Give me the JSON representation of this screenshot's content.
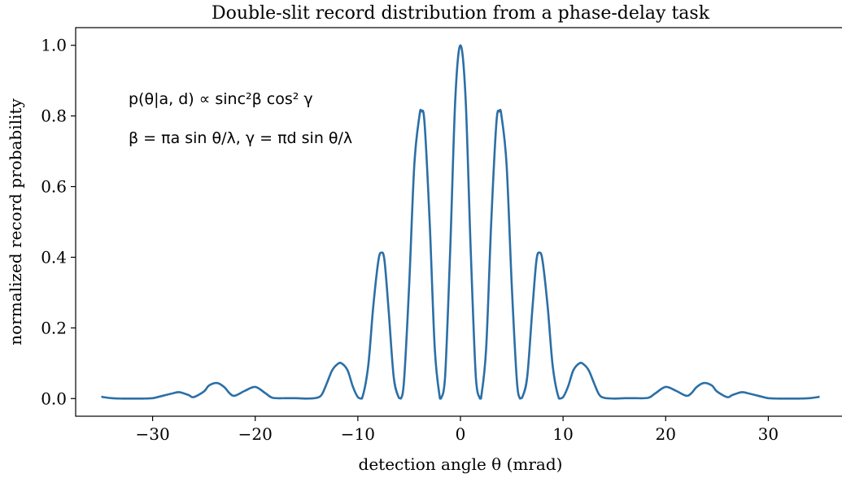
{
  "chart_data": {
    "type": "line",
    "title": "Double-slit record distribution from a phase-delay task",
    "xlabel": "detection angle θ (mrad)",
    "ylabel": "normalized record probability",
    "xlim": [
      -37.5,
      37.5
    ],
    "ylim": [
      -0.05,
      1.05
    ],
    "xticks": [
      -30,
      -20,
      -10,
      0,
      10,
      20,
      30
    ],
    "xtick_labels": [
      "−30",
      "−20",
      "−10",
      "0",
      "10",
      "20",
      "30"
    ],
    "yticks": [
      0.0,
      0.2,
      0.4,
      0.6,
      0.8,
      1.0
    ],
    "ytick_labels": [
      "0.0",
      "0.2",
      "0.4",
      "0.6",
      "0.8",
      "1.0"
    ],
    "grid": false,
    "series": [
      {
        "color": "#2b6fa6",
        "x": [
          -35,
          -34,
          -33,
          -32,
          -31,
          -30,
          -29,
          -28,
          -27.4,
          -26.5,
          -26,
          -25,
          -24.5,
          -23.7,
          -23,
          -22.5,
          -22,
          -21,
          -20,
          -19,
          -18.3,
          -17,
          -16,
          -15,
          -14,
          -13.5,
          -13,
          -12.5,
          -12,
          -11.6,
          -11,
          -10.5,
          -10,
          -9.6,
          -9,
          -8.5,
          -8,
          -7.7,
          -7.4,
          -7,
          -6.5,
          -6,
          -5.8,
          -5.5,
          -5,
          -4.5,
          -4,
          -3.8,
          -3.5,
          -3,
          -2.5,
          -2,
          -1.9,
          -1.5,
          -1,
          -0.5,
          0,
          0.5,
          1,
          1.5,
          1.9,
          2,
          2.5,
          3,
          3.5,
          3.8,
          4,
          4.5,
          5,
          5.5,
          5.8,
          6,
          6.5,
          7,
          7.4,
          7.7,
          8,
          8.5,
          9,
          9.6,
          10,
          10.5,
          11,
          11.6,
          12,
          12.5,
          13,
          13.5,
          14,
          15,
          16,
          17,
          18.3,
          19,
          20,
          21,
          22,
          22.5,
          23,
          23.7,
          24.5,
          25,
          26,
          26.5,
          27.4,
          28,
          29,
          30,
          31,
          32,
          33,
          34,
          35
        ],
        "y": [
          0.005,
          0.001,
          0.0,
          0.0,
          0.0,
          0.001,
          0.008,
          0.015,
          0.018,
          0.01,
          0.004,
          0.02,
          0.037,
          0.044,
          0.032,
          0.015,
          0.008,
          0.022,
          0.033,
          0.015,
          0.002,
          0.001,
          0.001,
          0.0,
          0.002,
          0.012,
          0.045,
          0.08,
          0.097,
          0.1,
          0.08,
          0.035,
          0.004,
          0.0,
          0.09,
          0.26,
          0.39,
          0.413,
          0.39,
          0.25,
          0.06,
          0.002,
          0.0,
          0.05,
          0.32,
          0.66,
          0.8,
          0.813,
          0.78,
          0.5,
          0.14,
          0.0,
          0.0,
          0.06,
          0.42,
          0.85,
          1.0,
          0.85,
          0.42,
          0.06,
          0.0,
          0.0,
          0.14,
          0.5,
          0.78,
          0.813,
          0.8,
          0.66,
          0.32,
          0.05,
          0.0,
          0.002,
          0.06,
          0.25,
          0.39,
          0.413,
          0.39,
          0.26,
          0.09,
          0.0,
          0.004,
          0.035,
          0.08,
          0.1,
          0.097,
          0.08,
          0.045,
          0.012,
          0.002,
          0.0,
          0.001,
          0.001,
          0.002,
          0.015,
          0.033,
          0.022,
          0.008,
          0.015,
          0.032,
          0.044,
          0.037,
          0.02,
          0.004,
          0.01,
          0.018,
          0.015,
          0.008,
          0.001,
          0.0,
          0.0,
          0.0,
          0.001,
          0.005
        ]
      }
    ],
    "annotations": [
      "p(θ|a, d) ∝ sinc²β cos² γ",
      "β = πa sin θ/λ, γ = πd sin θ/λ"
    ]
  }
}
